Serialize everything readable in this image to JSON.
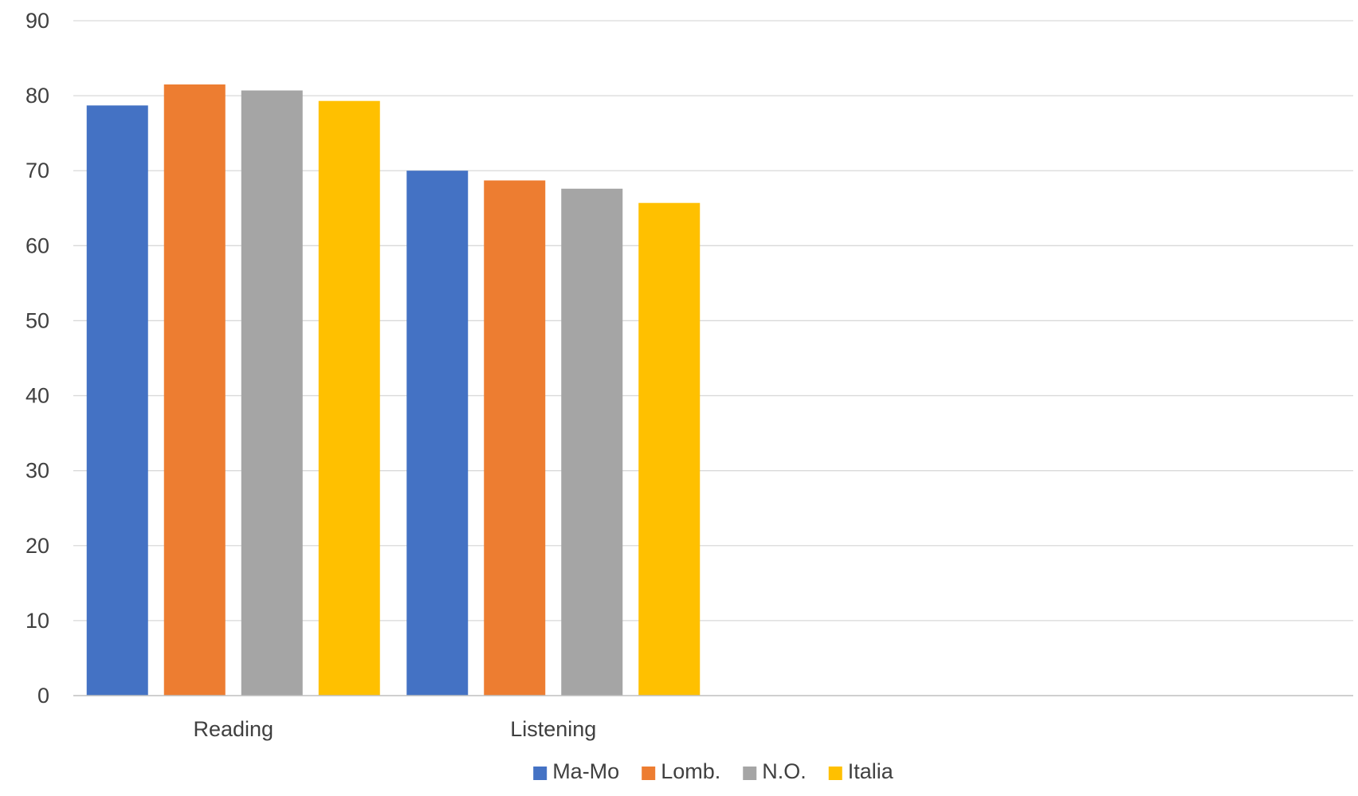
{
  "chart_data": {
    "type": "bar",
    "categories": [
      "Reading",
      "Listening",
      "",
      ""
    ],
    "series": [
      {
        "name": "Ma-Mo",
        "color": "#4472C4",
        "values": [
          78.7,
          70.0,
          null,
          null
        ]
      },
      {
        "name": "Lomb.",
        "color": "#ED7D31",
        "values": [
          81.5,
          68.7,
          null,
          null
        ]
      },
      {
        "name": "N.O.",
        "color": "#A5A5A5",
        "values": [
          80.7,
          67.6,
          null,
          null
        ]
      },
      {
        "name": "Italia",
        "color": "#FFC000",
        "values": [
          79.3,
          65.7,
          null,
          null
        ]
      }
    ],
    "title": "",
    "xlabel": "",
    "ylabel": "",
    "ylim": [
      0,
      90
    ],
    "yticks": [
      0,
      10,
      20,
      30,
      40,
      50,
      60,
      70,
      80,
      90
    ],
    "grid": true,
    "legend_position": "bottom",
    "gridline_color": "#D9D9D9",
    "axis_color": "#BFBFBF"
  }
}
